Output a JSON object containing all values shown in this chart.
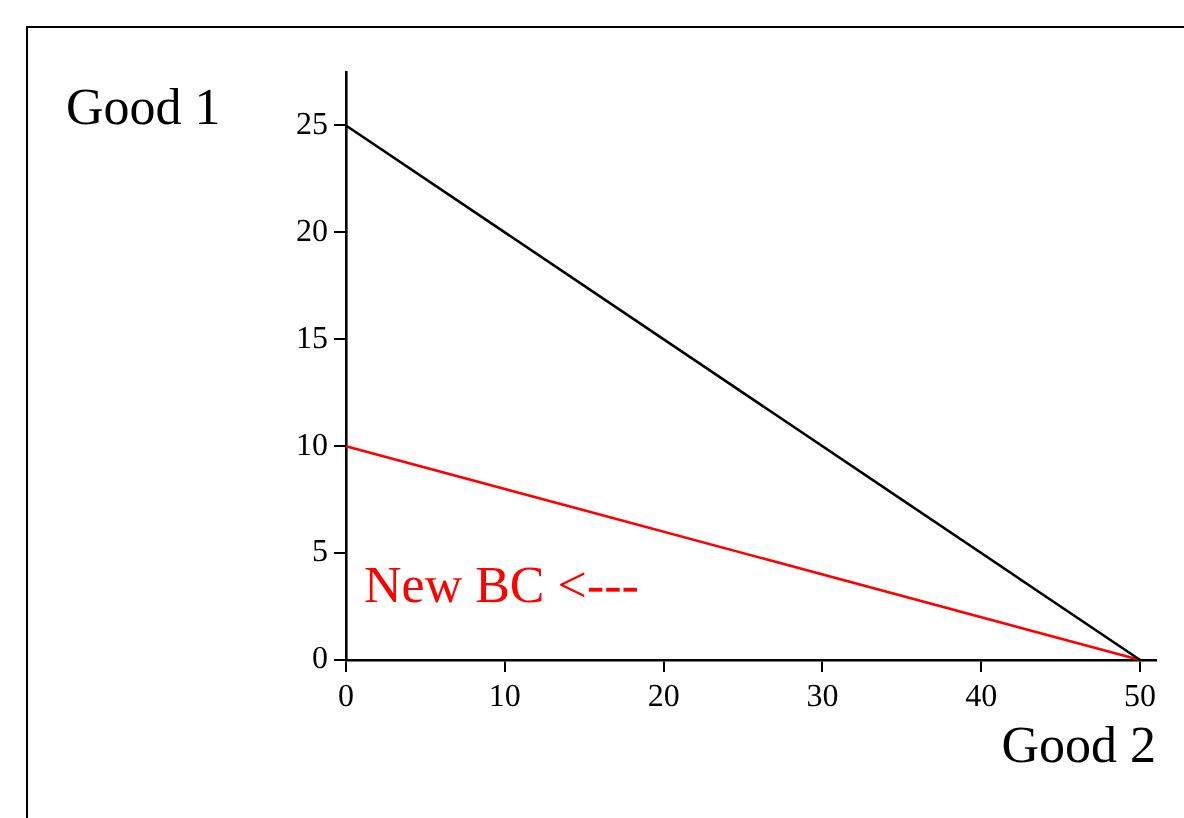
{
  "chart_data": {
    "type": "line",
    "xlabel": "Good 2",
    "ylabel": "Good 1",
    "x": [
      0,
      50
    ],
    "series": [
      {
        "color": "#000000",
        "values": [
          25,
          0
        ]
      },
      {
        "color": "#ff0000",
        "values": [
          10,
          0
        ]
      }
    ],
    "annotations": [
      "New BC <---"
    ],
    "xlim": [
      0,
      51
    ],
    "ylim": [
      0,
      27.5
    ],
    "xticks": [
      0,
      10,
      20,
      30,
      40,
      50
    ],
    "yticks": [
      0,
      5,
      10,
      15,
      20,
      25
    ],
    "grid": false,
    "legend": false,
    "marker": "none",
    "line_style": "solid"
  }
}
